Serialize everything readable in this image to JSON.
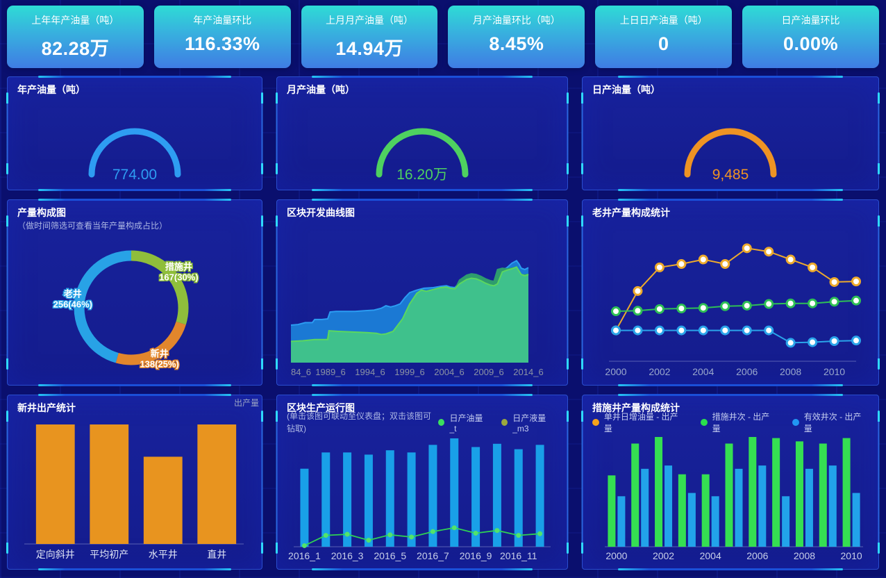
{
  "kpis": [
    {
      "label": "上年年产油量（吨）",
      "value": "82.28万"
    },
    {
      "label": "年产油量环比",
      "value": "116.33%"
    },
    {
      "label": "上月月产油量（吨）",
      "value": "14.94万"
    },
    {
      "label": "月产油量环比（吨）",
      "value": "8.45%"
    },
    {
      "label": "上日日产油量（吨）",
      "value": "0"
    },
    {
      "label": "日产油量环比",
      "value": "0.00%"
    }
  ],
  "chart_data": {
    "gauge_year": {
      "type": "gauge",
      "title": "年产油量（吨）",
      "value": "774.00",
      "color": "#2e9df2"
    },
    "gauge_month": {
      "type": "gauge",
      "title": "月产油量（吨）",
      "value": "16.20万",
      "color": "#4ed160"
    },
    "gauge_day": {
      "type": "gauge",
      "title": "日产油量（吨）",
      "value": "9,485",
      "color": "#ee9324"
    },
    "production_mix_pie": {
      "type": "pie",
      "title": "产量构成图",
      "subtitle": "（做时间筛选可查看当年产量构成占比）",
      "slices": [
        {
          "name": "措施井",
          "value": 167,
          "label": "167(30%)",
          "color": "#8fbe3b"
        },
        {
          "name": "新井",
          "value": 138,
          "label": "138(25%)",
          "color": "#e2862c"
        },
        {
          "name": "老井",
          "value": 256,
          "label": "256(46%)",
          "color": "#28a2e6"
        }
      ]
    },
    "block_dev_area": {
      "type": "area",
      "title": "区块开发曲线图",
      "x_labels": [
        "84_6",
        "1989_6",
        "1994_6",
        "1999_6",
        "2004_6",
        "2009_6",
        "2014_6"
      ],
      "ylim": [
        0,
        100
      ],
      "series": [
        {
          "name": "blue-layer",
          "fill": "#1b79d4",
          "stroke": "#2b9cf2",
          "points": [
            [
              0,
              30
            ],
            [
              0.03,
              30.5
            ],
            [
              0.06,
              32
            ],
            [
              0.09,
              32
            ],
            [
              0.1,
              34.5
            ],
            [
              0.13,
              34.5
            ],
            [
              0.155,
              35
            ],
            [
              0.165,
              40.5
            ],
            [
              0.19,
              41
            ],
            [
              0.23,
              41
            ],
            [
              0.27,
              41
            ],
            [
              0.31,
              41.5
            ],
            [
              0.35,
              42
            ],
            [
              0.38,
              43.5
            ],
            [
              0.4,
              45.5
            ],
            [
              0.42,
              44.5
            ],
            [
              0.44,
              45.5
            ],
            [
              0.46,
              47
            ],
            [
              0.48,
              52
            ],
            [
              0.5,
              56
            ],
            [
              0.53,
              58
            ],
            [
              0.56,
              59.5
            ],
            [
              0.6,
              60
            ],
            [
              0.63,
              61
            ],
            [
              0.655,
              61.5
            ],
            [
              0.67,
              60.5
            ],
            [
              0.69,
              60
            ],
            [
              0.71,
              64
            ],
            [
              0.74,
              67.5
            ],
            [
              0.76,
              68.5
            ],
            [
              0.78,
              68
            ],
            [
              0.8,
              66.5
            ],
            [
              0.82,
              64.5
            ],
            [
              0.84,
              63
            ],
            [
              0.855,
              62.5
            ],
            [
              0.87,
              64
            ],
            [
              0.89,
              74
            ],
            [
              0.91,
              76
            ],
            [
              0.93,
              79.5
            ],
            [
              0.95,
              81.5
            ],
            [
              0.96,
              79
            ],
            [
              0.97,
              75.5
            ],
            [
              0.985,
              74.5
            ],
            [
              1,
              76
            ]
          ]
        },
        {
          "name": "dark-green-layer",
          "fill": "#2e9c6e",
          "stroke": "#2e9c6e",
          "points": [
            [
              0,
              16
            ],
            [
              0.1,
              17.5
            ],
            [
              0.15,
              17.5
            ],
            [
              0.16,
              24.5
            ],
            [
              0.2,
              24
            ],
            [
              0.26,
              23.5
            ],
            [
              0.32,
              23
            ],
            [
              0.36,
              22.5
            ],
            [
              0.38,
              21.5
            ],
            [
              0.4,
              22
            ],
            [
              0.43,
              24
            ],
            [
              0.47,
              34
            ],
            [
              0.5,
              46
            ],
            [
              0.53,
              55
            ],
            [
              0.55,
              57.5
            ],
            [
              0.57,
              56.5
            ],
            [
              0.6,
              58
            ],
            [
              0.63,
              59.5
            ],
            [
              0.655,
              60
            ],
            [
              0.67,
              59
            ],
            [
              0.69,
              58.5
            ],
            [
              0.71,
              66
            ],
            [
              0.74,
              70
            ],
            [
              0.76,
              71
            ],
            [
              0.78,
              70.5
            ],
            [
              0.8,
              69
            ],
            [
              0.82,
              67
            ],
            [
              0.84,
              65.5
            ],
            [
              0.855,
              65
            ],
            [
              0.87,
              74.5
            ],
            [
              0.89,
              75.5
            ],
            [
              0.91,
              75
            ],
            [
              0.93,
              75.5
            ],
            [
              0.95,
              76
            ],
            [
              0.97,
              70
            ],
            [
              1,
              70.5
            ]
          ]
        },
        {
          "name": "light-green-layer",
          "fill": "#3fc18c",
          "stroke": "#5bd75f",
          "points": [
            [
              0,
              17
            ],
            [
              0.05,
              17.5
            ],
            [
              0.1,
              18.5
            ],
            [
              0.155,
              18.5
            ],
            [
              0.16,
              25.5
            ],
            [
              0.2,
              25
            ],
            [
              0.26,
              24.5
            ],
            [
              0.32,
              24
            ],
            [
              0.36,
              23.5
            ],
            [
              0.38,
              22.5
            ],
            [
              0.4,
              23
            ],
            [
              0.43,
              25
            ],
            [
              0.47,
              35
            ],
            [
              0.5,
              47
            ],
            [
              0.53,
              55.5
            ],
            [
              0.55,
              58
            ],
            [
              0.57,
              57
            ],
            [
              0.6,
              58.5
            ],
            [
              0.63,
              60
            ],
            [
              0.655,
              60.5
            ],
            [
              0.67,
              59.5
            ],
            [
              0.69,
              59
            ],
            [
              0.71,
              63
            ],
            [
              0.74,
              66.5
            ],
            [
              0.76,
              67.5
            ],
            [
              0.78,
              67
            ],
            [
              0.8,
              65.5
            ],
            [
              0.82,
              63.5
            ],
            [
              0.84,
              62
            ],
            [
              0.855,
              61.5
            ],
            [
              0.87,
              63
            ],
            [
              0.89,
              72.5
            ],
            [
              0.91,
              74
            ],
            [
              0.93,
              75
            ],
            [
              0.95,
              76.5
            ],
            [
              0.955,
              75
            ],
            [
              0.97,
              70.5
            ],
            [
              0.985,
              69.5
            ],
            [
              1,
              70.5
            ]
          ]
        }
      ]
    },
    "old_well_lines": {
      "type": "line",
      "title": "老井产量构成统计",
      "years": [
        "2000",
        "2001",
        "2002",
        "2003",
        "2004",
        "2005",
        "2006",
        "2007",
        "2008",
        "2009",
        "2010",
        "2011"
      ],
      "x_ticks": [
        "2000",
        "2002",
        "2004",
        "2006",
        "2008",
        "2010"
      ],
      "ylim": [
        0,
        100
      ],
      "series": [
        {
          "name": "orange-line",
          "color": "#edaa2c",
          "values": [
            20,
            55,
            76,
            79,
            83,
            79,
            93,
            90,
            83,
            76,
            63,
            63.5
          ]
        },
        {
          "name": "green-line",
          "color": "#2fc055",
          "values": [
            37,
            37.5,
            39,
            39.5,
            40,
            41.5,
            42,
            43.5,
            44,
            44,
            45.5,
            46.5
          ]
        },
        {
          "name": "blue-line",
          "color": "#2aa4ea",
          "values": [
            20,
            20,
            20,
            20,
            20,
            20,
            20,
            20,
            9,
            9.5,
            10.5,
            11
          ]
        }
      ]
    },
    "new_well_bars": {
      "type": "bar",
      "title": "新井出产统计",
      "legend": "出产量",
      "categories": [
        "定向斜井",
        "平均初产",
        "水平井",
        "直井"
      ],
      "values": [
        100,
        100,
        73,
        100
      ],
      "bar_color": "#e8941f",
      "ylim": [
        0,
        100
      ]
    },
    "block_run_combo": {
      "type": "bar-line",
      "title": "区块生产运行图",
      "subtitle": "(单击该图可联动至仪表盘；双击该图可钻取)",
      "legend": [
        {
          "label": "日产油量_t",
          "color": "#3bdf5e"
        },
        {
          "label": "日产液量_m3",
          "color": "#9aa83f"
        }
      ],
      "months": [
        "2016_1",
        "2016_2",
        "2016_3",
        "2016_4",
        "2016_5",
        "2016_6",
        "2016_7",
        "2016_8",
        "2016_9",
        "2016_10",
        "2016_11",
        "2016_12"
      ],
      "x_ticks": [
        "2016_1",
        "2016_3",
        "2016_5",
        "2016_7",
        "2016_9",
        "2016_11"
      ],
      "bar_values": [
        72,
        87,
        87,
        85,
        89,
        87,
        94,
        100,
        92,
        95,
        90,
        94
      ],
      "line_values": [
        1,
        10.5,
        11.5,
        6,
        11,
        9,
        14,
        17.5,
        12.5,
        15,
        10.5,
        12
      ],
      "bar_color": "#19a0e8",
      "line_color": "#2fd153",
      "ylim": [
        0,
        100
      ]
    },
    "measure_well_grouped": {
      "type": "grouped-bar",
      "title": "措施井产量构成统计",
      "legend": [
        {
          "label": "单井日增油量 - 出产量",
          "color": "#f5a21b"
        },
        {
          "label": "措施井次 - 出产量",
          "color": "#2ae04e"
        },
        {
          "label": "有效井次 - 出产量",
          "color": "#2196f3"
        }
      ],
      "years": [
        "2000",
        "2001",
        "2002",
        "2003",
        "2004",
        "2005",
        "2006",
        "2007",
        "2008",
        "2009",
        "2010"
      ],
      "x_ticks": [
        "2000",
        "2002",
        "2004",
        "2006",
        "2008",
        "2010"
      ],
      "ylim": [
        0,
        100
      ],
      "series": [
        {
          "name": "措施井次 - 出产量",
          "color": "#35df52",
          "values": [
            65,
            94,
            100,
            66,
            66,
            94,
            100,
            99,
            96,
            94,
            99
          ]
        },
        {
          "name": "有效井次 - 出产量",
          "color": "#22a3ea",
          "values": [
            46,
            71,
            74,
            49,
            46,
            71,
            74,
            46,
            71,
            74,
            49
          ]
        }
      ]
    }
  }
}
